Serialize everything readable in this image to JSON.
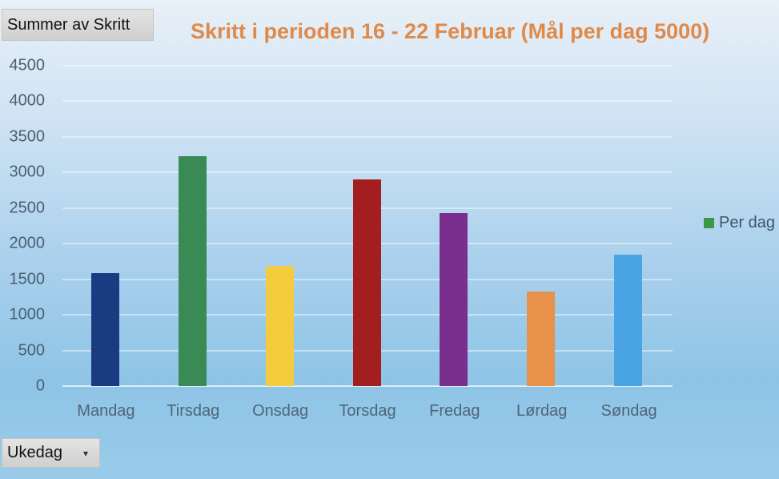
{
  "pivot_fields": {
    "value_field_label": "Summer av Skritt",
    "axis_field_label": "Ukedag",
    "axis_field_dropdown_icon": "dropdown-arrow-icon"
  },
  "chart_data": {
    "type": "bar",
    "title": "Skritt i perioden 16 - 22 Februar  (Mål per dag 5000)",
    "xlabel": "",
    "ylabel": "",
    "categories": [
      "Mandag",
      "Tirsdag",
      "Onsdag",
      "Torsdag",
      "Fredag",
      "Lørdag",
      "Søndag"
    ],
    "series": [
      {
        "name": "Per dag",
        "values": [
          1590,
          3230,
          1690,
          2900,
          2430,
          1330,
          1850
        ]
      }
    ],
    "bar_colors": [
      "#1a3a82",
      "#3a8a55",
      "#f2cc3c",
      "#a31e1e",
      "#7a2f8f",
      "#e8914a",
      "#4aa3e3"
    ],
    "yticks": [
      0,
      500,
      1000,
      1500,
      2000,
      2500,
      3000,
      3500,
      4000,
      4500
    ],
    "ylim": [
      0,
      4500
    ],
    "grid": true,
    "legend": {
      "position": "right",
      "entries": [
        "Per dag"
      ],
      "swatch_color": "#3a9a4a"
    },
    "title_color": "#e08a4a"
  }
}
